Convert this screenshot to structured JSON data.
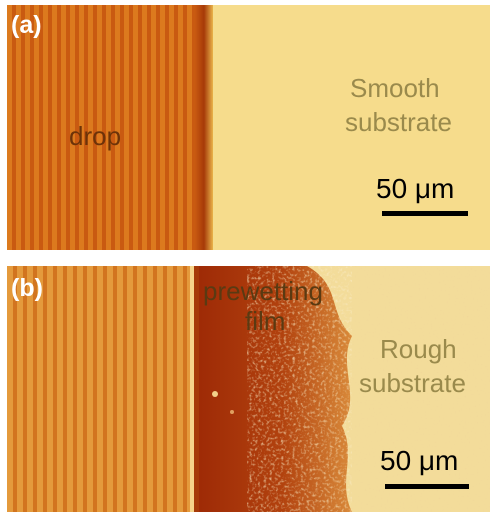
{
  "panel_a": {
    "letter": "(a)",
    "drop_label": "drop",
    "substrate_line1": "Smooth",
    "substrate_line2": "substrate",
    "scale_label": "50 μm"
  },
  "panel_b": {
    "letter": "(b)",
    "film_line1": "prewetting",
    "film_line2": "film",
    "substrate_line1": "Rough",
    "substrate_line2": "substrate",
    "scale_label": "50 μm"
  },
  "colors": {
    "drop_orange": "#d8741a",
    "fringe_dark": "#c8560f",
    "edge_dark": "#a63a08",
    "substrate_yellow": "#f6dc8c",
    "film_red": "#9e2a06",
    "rough_light": "#f3dc9a"
  }
}
